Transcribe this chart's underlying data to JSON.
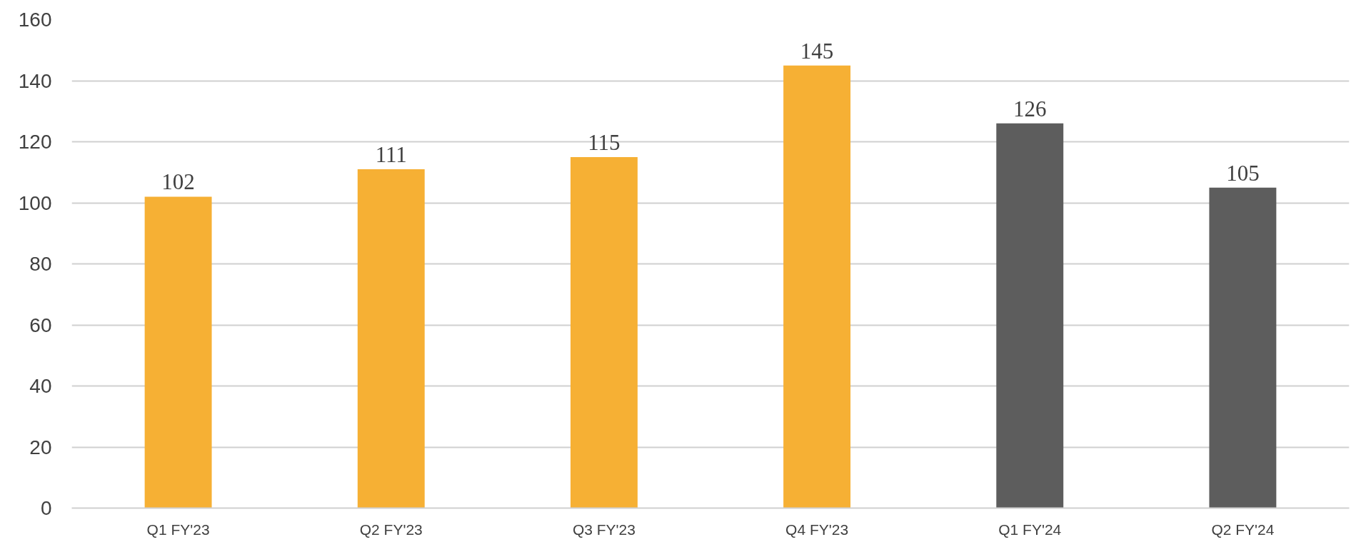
{
  "chart_data": {
    "type": "bar",
    "categories": [
      "Q1 FY'23",
      "Q2 FY'23",
      "Q3 FY'23",
      "Q4 FY'23",
      "Q1 FY'24",
      "Q2 FY'24"
    ],
    "values": [
      102,
      111,
      115,
      145,
      126,
      105
    ],
    "colors": [
      "#f6b034",
      "#f6b034",
      "#f6b034",
      "#f6b034",
      "#5d5d5d",
      "#5d5d5d"
    ],
    "ylim": [
      0,
      160
    ],
    "yticks": [
      0,
      20,
      40,
      60,
      80,
      100,
      120,
      140,
      160
    ],
    "grid": "y",
    "data_labels": true
  }
}
